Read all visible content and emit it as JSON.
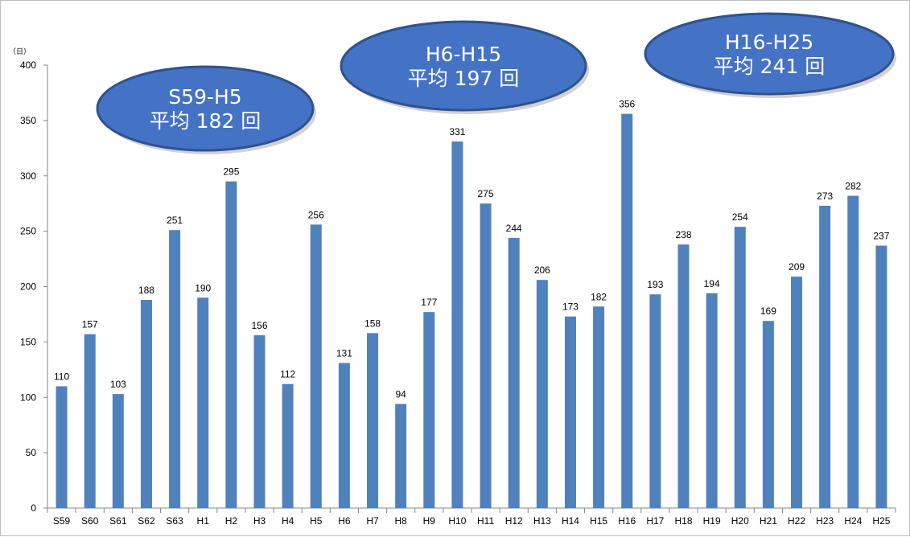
{
  "chart_data": {
    "type": "bar",
    "y_unit": "（日）",
    "ylim": [
      0,
      400
    ],
    "yticks": [
      0,
      50,
      100,
      150,
      200,
      250,
      300,
      350,
      400
    ],
    "grid": false,
    "legend": "none",
    "bar_color": "#4F81BD",
    "categories": [
      "S59",
      "S60",
      "S61",
      "S62",
      "S63",
      "H1",
      "H2",
      "H3",
      "H4",
      "H5",
      "H6",
      "H7",
      "H8",
      "H9",
      "H10",
      "H11",
      "H12",
      "H13",
      "H14",
      "H15",
      "H16",
      "H17",
      "H18",
      "H19",
      "H20",
      "H21",
      "H22",
      "H23",
      "H24",
      "H25"
    ],
    "values": [
      110,
      157,
      103,
      188,
      251,
      190,
      295,
      156,
      112,
      256,
      131,
      158,
      94,
      177,
      331,
      275,
      244,
      206,
      173,
      182,
      356,
      193,
      238,
      194,
      254,
      169,
      209,
      273,
      282,
      237
    ]
  },
  "callouts": [
    {
      "line1": "S59-H5",
      "line2": "平均 182 回",
      "fill": "#4472C4",
      "stroke": "#2F528F"
    },
    {
      "line1": "H6-H15",
      "line2": "平均 197 回",
      "fill": "#4472C4",
      "stroke": "#2F528F"
    },
    {
      "line1": "H16-H25",
      "line2": "平均 241 回",
      "fill": "#4472C4",
      "stroke": "#2F528F"
    }
  ]
}
